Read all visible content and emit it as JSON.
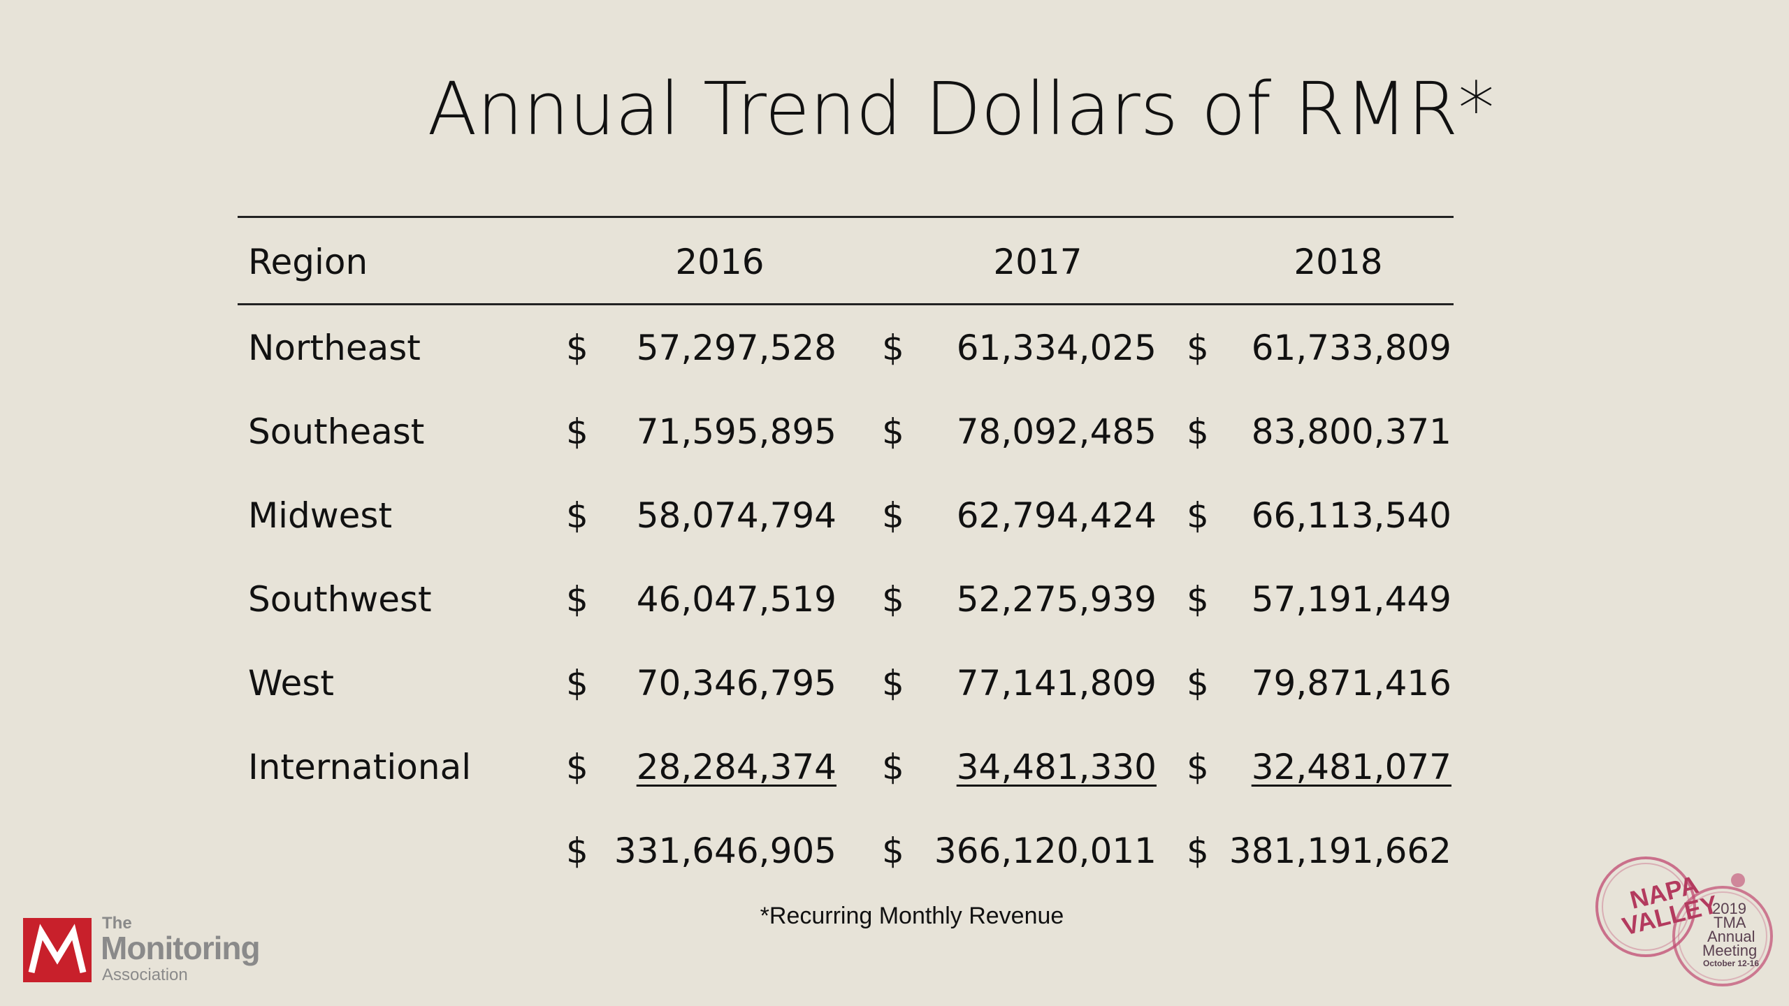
{
  "title": "Annual Trend Dollars of RMR*",
  "table": {
    "headers": {
      "region": "Region",
      "years": [
        "2016",
        "2017",
        "2018"
      ]
    },
    "currency_symbol": "$",
    "rows": [
      {
        "region": "Northeast",
        "values": [
          "57,297,528",
          "61,334,025",
          "61,733,809"
        ]
      },
      {
        "region": "Southeast",
        "values": [
          "71,595,895",
          "78,092,485",
          "83,800,371"
        ]
      },
      {
        "region": "Midwest",
        "values": [
          "58,074,794",
          "62,794,424",
          "66,113,540"
        ]
      },
      {
        "region": "Southwest",
        "values": [
          "46,047,519",
          "52,275,939",
          "57,191,449"
        ]
      },
      {
        "region": "West",
        "values": [
          "70,346,795",
          "77,141,809",
          "79,871,416"
        ]
      },
      {
        "region": "International",
        "values": [
          "28,284,374",
          "34,481,330",
          "32,481,077"
        ]
      }
    ],
    "totals": [
      "331,646,905",
      "366,120,011",
      "381,191,662"
    ]
  },
  "footnote": "*Recurring Monthly Revenue",
  "logo": {
    "the": "The",
    "name": "Monitoring",
    "sub": "Association",
    "brand_color": "#c8202b"
  },
  "badge": {
    "napa": "NAPA",
    "valley": "VALLEY",
    "year": "2019",
    "tma": "TMA",
    "annual": "Annual",
    "meeting": "Meeting",
    "dates": "October 12-16",
    "color": "#b33a5e"
  }
}
